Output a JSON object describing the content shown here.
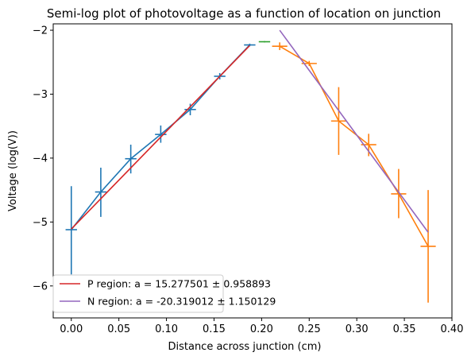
{
  "chart_data": {
    "type": "scatter",
    "title": "Semi-log plot of photovoltage as a function of location on junction",
    "xlabel": "Distance across junction (cm)",
    "ylabel": "Voltage (log(V))",
    "xlim": [
      -0.019,
      0.4
    ],
    "ylim": [
      -6.5,
      -1.9
    ],
    "xticks": [
      0.0,
      0.05,
      0.1,
      0.15,
      0.2,
      0.25,
      0.3,
      0.35,
      0.4
    ],
    "xtick_labels": [
      "0.00",
      "0.05",
      "0.10",
      "0.15",
      "0.20",
      "0.25",
      "0.30",
      "0.35",
      "0.40"
    ],
    "yticks": [
      -6,
      -5,
      -4,
      -3,
      -2
    ],
    "ytick_labels": [
      "−6",
      "−5",
      "−4",
      "−3",
      "−2"
    ],
    "grid": false,
    "legend_placement": "lower-left",
    "series": [
      {
        "kind": "errorbar",
        "color": "#1f77b4",
        "connect": true,
        "points": [
          {
            "x": 0.0,
            "y": -5.12,
            "xerr": 0.006,
            "yerr_low": 0.7,
            "yerr_high": 0.68
          },
          {
            "x": 0.031,
            "y": -4.53,
            "xerr": 0.006,
            "yerr_low": 0.39,
            "yerr_high": 0.38
          },
          {
            "x": 0.0625,
            "y": -4.01,
            "xerr": 0.006,
            "yerr_low": 0.23,
            "yerr_high": 0.22
          },
          {
            "x": 0.094,
            "y": -3.63,
            "xerr": 0.006,
            "yerr_low": 0.13,
            "yerr_high": 0.14
          },
          {
            "x": 0.125,
            "y": -3.24,
            "xerr": 0.006,
            "yerr_low": 0.09,
            "yerr_high": 0.09
          },
          {
            "x": 0.156,
            "y": -2.72,
            "xerr": 0.006,
            "yerr_low": 0.05,
            "yerr_high": 0.05
          },
          {
            "x": 0.1875,
            "y": -2.23,
            "xerr": 0.006,
            "yerr_low": 0.02,
            "yerr_high": 0.02
          }
        ]
      },
      {
        "kind": "errorbar",
        "color": "#2ca02c",
        "connect": false,
        "points": [
          {
            "x": 0.203,
            "y": -2.18,
            "xerr": 0.006,
            "yerr_low": 0.01,
            "yerr_high": 0.01
          }
        ]
      },
      {
        "kind": "errorbar",
        "color": "#ff7f0e",
        "connect": true,
        "points": [
          {
            "x": 0.219,
            "y": -2.25,
            "xerr": 0.008,
            "yerr_low": 0.06,
            "yerr_high": 0.06
          },
          {
            "x": 0.25,
            "y": -2.52,
            "xerr": 0.008,
            "yerr_low": 0.04,
            "yerr_high": 0.04
          },
          {
            "x": 0.281,
            "y": -3.42,
            "xerr": 0.008,
            "yerr_low": 0.53,
            "yerr_high": 0.53
          },
          {
            "x": 0.3125,
            "y": -3.79,
            "xerr": 0.008,
            "yerr_low": 0.18,
            "yerr_high": 0.17
          },
          {
            "x": 0.344,
            "y": -4.56,
            "xerr": 0.008,
            "yerr_low": 0.38,
            "yerr_high": 0.39
          },
          {
            "x": 0.375,
            "y": -5.38,
            "xerr": 0.008,
            "yerr_low": 0.88,
            "yerr_high": 0.88
          }
        ]
      },
      {
        "kind": "fit",
        "name": "P region: a = 15.277501 ± 0.958893",
        "color": "#d62728",
        "points": [
          {
            "x": 0.0,
            "y": -5.11
          },
          {
            "x": 0.1875,
            "y": -2.24
          }
        ]
      },
      {
        "kind": "fit",
        "name": "N region: a = -20.319012 ± 1.150129",
        "color": "#9467bd",
        "points": [
          {
            "x": 0.219,
            "y": -2.0
          },
          {
            "x": 0.375,
            "y": -5.16
          }
        ]
      }
    ]
  }
}
